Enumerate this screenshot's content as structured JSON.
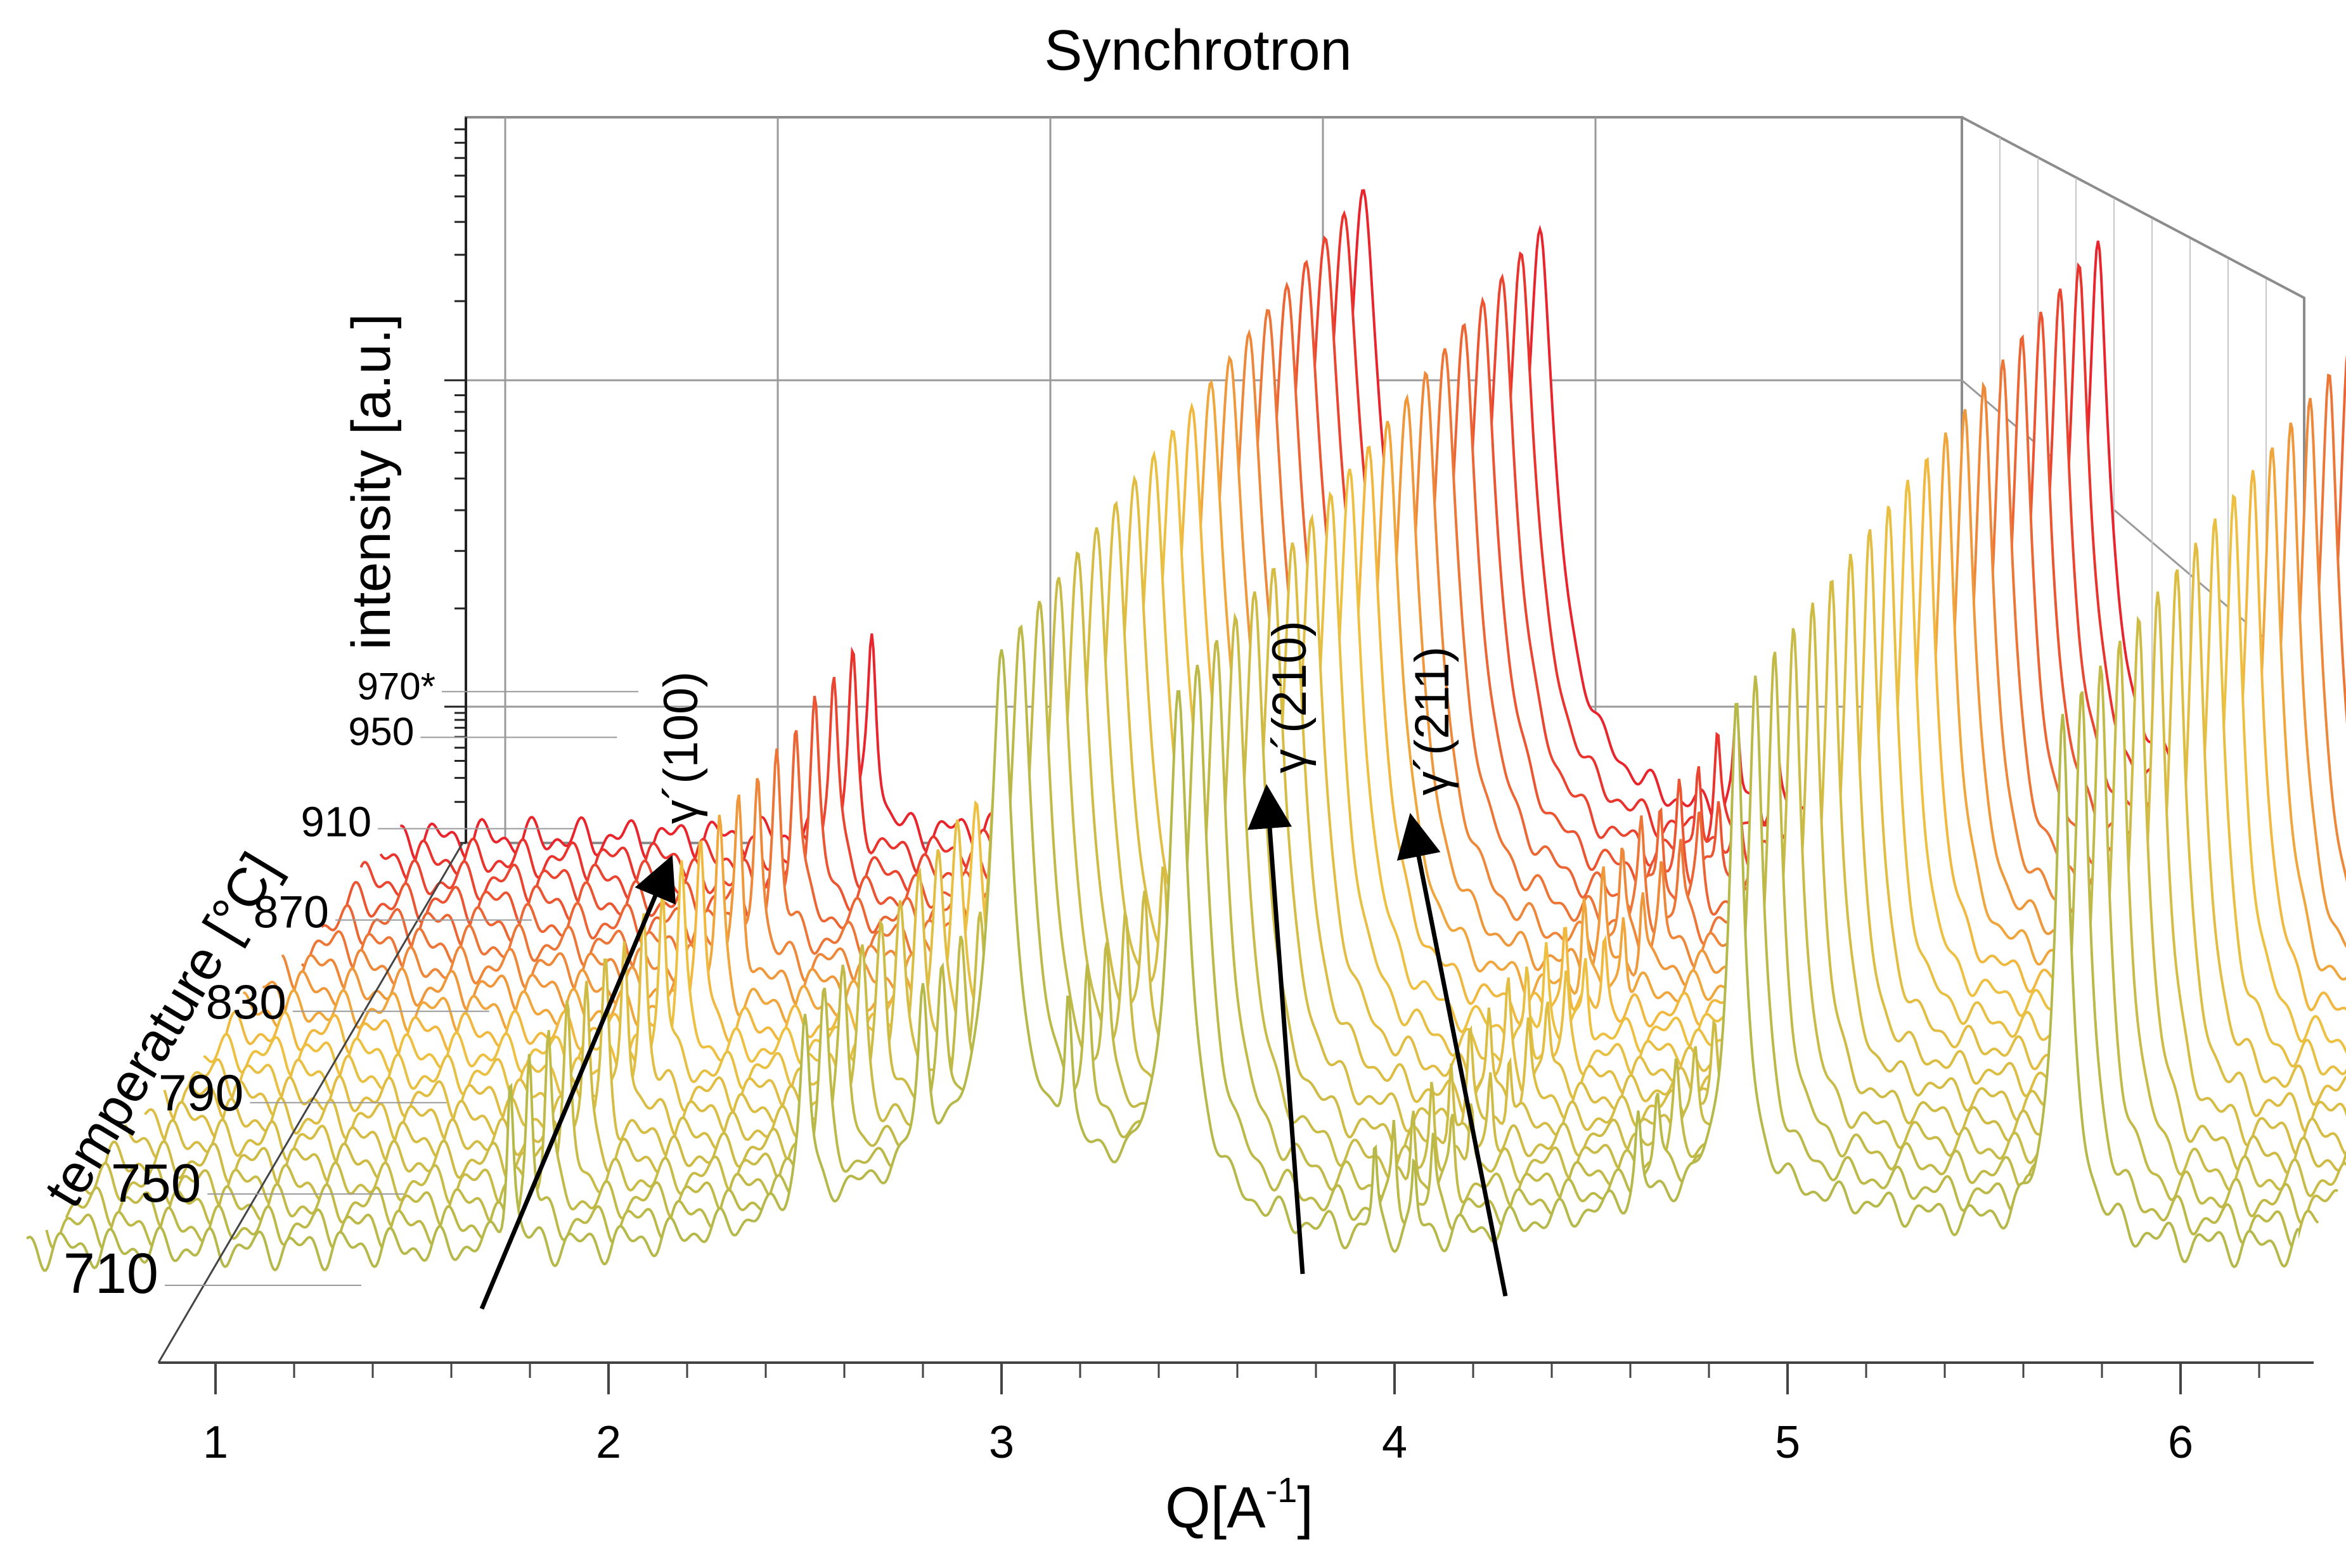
{
  "chart_data": {
    "type": "line",
    "subtype": "waterfall-3d",
    "title": "Synchrotron",
    "xlabel_main": "Q[A",
    "xlabel_sup": "-1",
    "xlabel_end": "]",
    "ylabel": "intensity [a.u.]",
    "zlabel": "temperature [°C]",
    "x_ticks": [
      "1",
      "2",
      "3",
      "4",
      "5",
      "6"
    ],
    "xlim": [
      1,
      6.3
    ],
    "temperature_ticks": [
      "710",
      "750",
      "790",
      "830",
      "870",
      "910",
      "950",
      "970*"
    ],
    "temperature_tick_values": [
      710,
      750,
      790,
      830,
      870,
      910,
      950,
      970
    ],
    "series_count": 20,
    "color_start": "#b6b84a",
    "color_mid": "#f0c040",
    "color_end": "#e8242c",
    "peaks": [
      {
        "q": 1.75,
        "height": 0.06,
        "width": 0.008
      },
      {
        "q": 2.5,
        "height": 0.09,
        "width": 0.012
      },
      {
        "q": 2.8,
        "height": 0.1,
        "width": 0.012
      },
      {
        "q": 3.0,
        "height": 1.0,
        "width": 0.018
      },
      {
        "q": 3.17,
        "height": 0.09,
        "width": 0.009
      },
      {
        "q": 3.45,
        "height": 0.8,
        "width": 0.016
      },
      {
        "q": 3.95,
        "height": 0.025,
        "width": 0.006
      },
      {
        "q": 4.05,
        "height": 0.02,
        "width": 0.006
      },
      {
        "q": 4.62,
        "height": 0.03,
        "width": 0.008
      },
      {
        "q": 4.87,
        "height": 0.75,
        "width": 0.012
      },
      {
        "q": 5.7,
        "height": 0.7,
        "width": 0.012
      }
    ],
    "annotations": [
      {
        "label": "γ´(100)",
        "q": 2.05
      },
      {
        "label": "γ´(210)",
        "q": 3.7
      },
      {
        "label": "γ´(211)",
        "q": 4.05
      }
    ]
  }
}
